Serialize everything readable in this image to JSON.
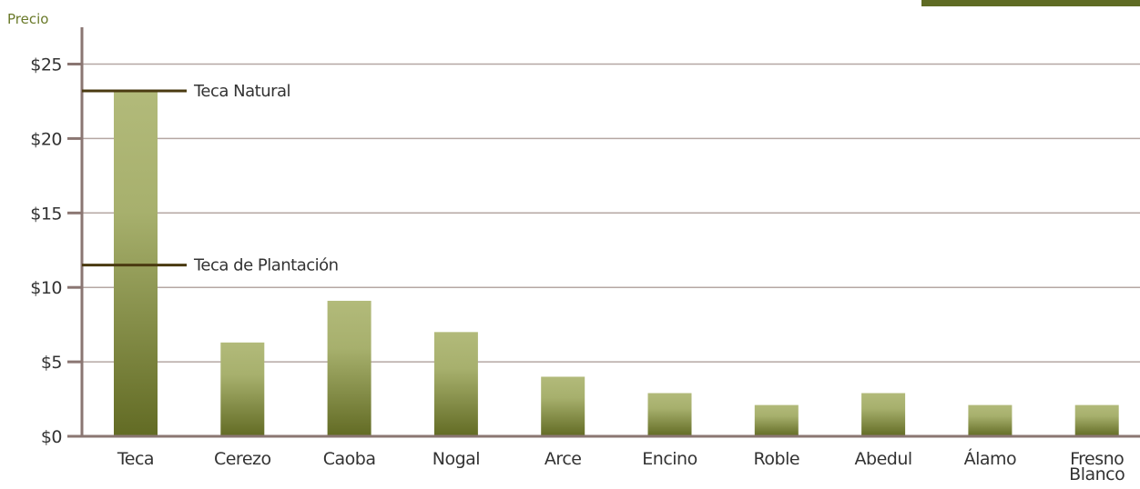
{
  "chart_data": {
    "type": "bar",
    "title": "",
    "xlabel": "",
    "ylabel": "Precio",
    "categories": [
      "Teca",
      "Cerezo",
      "Caoba",
      "Nogal",
      "Arce",
      "Encino",
      "Roble",
      "Abedul",
      "Álamo",
      "Fresno Blanco"
    ],
    "values": [
      23.2,
      6.3,
      9.1,
      7.0,
      4.0,
      2.9,
      2.1,
      2.9,
      2.1,
      2.1
    ],
    "ylim": [
      0,
      27
    ],
    "yticks": [
      0,
      5,
      10,
      15,
      20,
      25
    ],
    "ytick_labels": [
      "$0",
      "$5",
      "$10",
      "$15",
      "$20",
      "$25"
    ],
    "grid": true,
    "annotations": [
      {
        "label": "Teca Natural",
        "value": 23.2
      },
      {
        "label": "Teca de Plantación",
        "value": 11.5
      }
    ]
  },
  "colors": {
    "bar_light": "#b2ba7a",
    "bar_dark": "#626b24",
    "grid": "#b5a7a3",
    "axis": "#8a7672",
    "annotation": "#4a3a10",
    "accent": "#5f6b24"
  }
}
